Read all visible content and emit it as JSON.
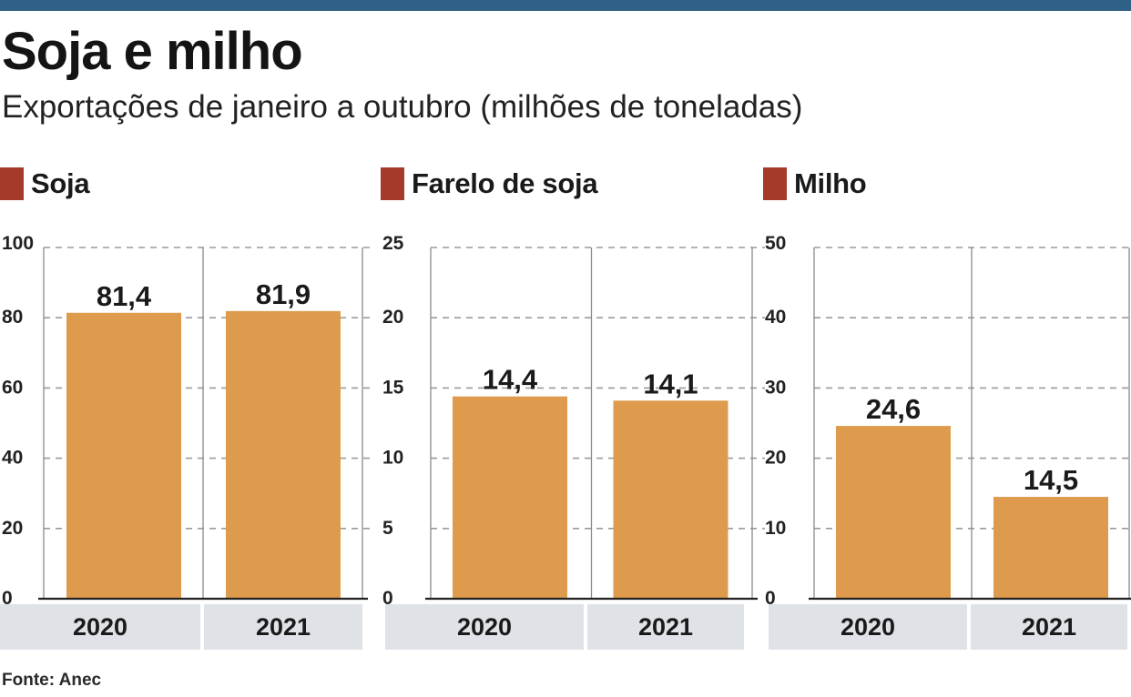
{
  "header": {
    "title": "Soja e milho",
    "subtitle": "Exportações de janeiro a outubro (milhões de toneladas)"
  },
  "source": "Fonte: Anec",
  "colors": {
    "top_bar": "#2f6187",
    "bar": "#de9b4d",
    "swatch": "#a63a2a",
    "axis_band": "#dfe3e8",
    "grid": "#9a9a9a"
  },
  "chart_data": [
    {
      "type": "bar",
      "title": "Soja",
      "categories": [
        "2020",
        "2021"
      ],
      "values": [
        81.4,
        81.9
      ],
      "value_labels": [
        "81,4",
        "81,9"
      ],
      "ylim": [
        0,
        100
      ],
      "yticks": [
        0,
        20,
        40,
        60,
        80,
        100
      ],
      "grid": true,
      "xlabel": "",
      "ylabel": ""
    },
    {
      "type": "bar",
      "title": "Farelo de soja",
      "categories": [
        "2020",
        "2021"
      ],
      "values": [
        14.4,
        14.1
      ],
      "value_labels": [
        "14,4",
        "14,1"
      ],
      "ylim": [
        0,
        25
      ],
      "yticks": [
        0,
        5,
        10,
        15,
        20,
        25
      ],
      "grid": true,
      "xlabel": "",
      "ylabel": ""
    },
    {
      "type": "bar",
      "title": "Milho",
      "categories": [
        "2020",
        "2021"
      ],
      "values": [
        24.6,
        14.5
      ],
      "value_labels": [
        "24,6",
        "14,5"
      ],
      "ylim": [
        0,
        50
      ],
      "yticks": [
        0,
        10,
        20,
        30,
        40,
        50
      ],
      "grid": true,
      "xlabel": "",
      "ylabel": ""
    }
  ]
}
